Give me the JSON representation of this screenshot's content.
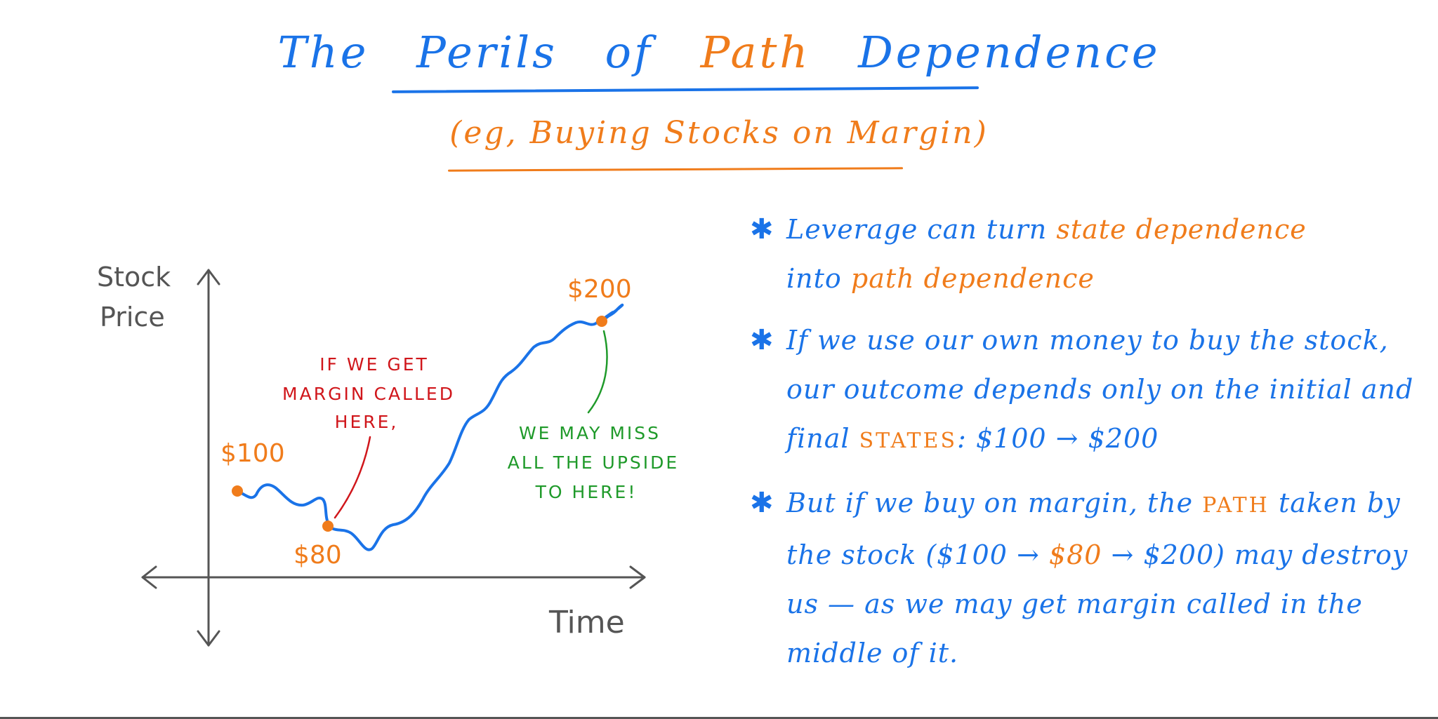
{
  "title": {
    "w1": "The",
    "w2": "Perils",
    "w3": "of",
    "w4": "Path",
    "w5": "Dependence"
  },
  "subtitle": "(eg, Buying Stocks on Margin)",
  "diagram": {
    "y_label_1": "Stock",
    "y_label_2": "Price",
    "x_label": "Time",
    "start_price": "$100",
    "low_price": "$80",
    "end_price": "$200",
    "annotation_red": [
      "IF WE GET",
      "MARGIN CALLED",
      "HERE,"
    ],
    "annotation_green": [
      "WE MAY MISS",
      "ALL THE UPSIDE",
      "TO HERE!"
    ]
  },
  "bullets": {
    "b1_a": "Leverage can turn",
    "b1_b": "state dependence",
    "b1_c": "into",
    "b1_d": "path dependence",
    "b2_a": "If we use our own money to buy the stock, our outcome depends only on the initial and final",
    "b2_b": "STATES",
    "b2_c": ": $100 → $200",
    "b3_a": "But if we buy on margin, the",
    "b3_b": "PATH",
    "b3_c": "taken by the stock ($100 →",
    "b3_d": "$80",
    "b3_e": "→ $200) may destroy us — as we may get margin called in the middle of it."
  },
  "colors": {
    "blue": "#1a73e8",
    "orange": "#f07c1b",
    "red": "#d0161b",
    "green": "#1f9a2a",
    "gray": "#555555"
  },
  "icons": [
    "star-bullet-icon",
    "arrow-icon"
  ]
}
